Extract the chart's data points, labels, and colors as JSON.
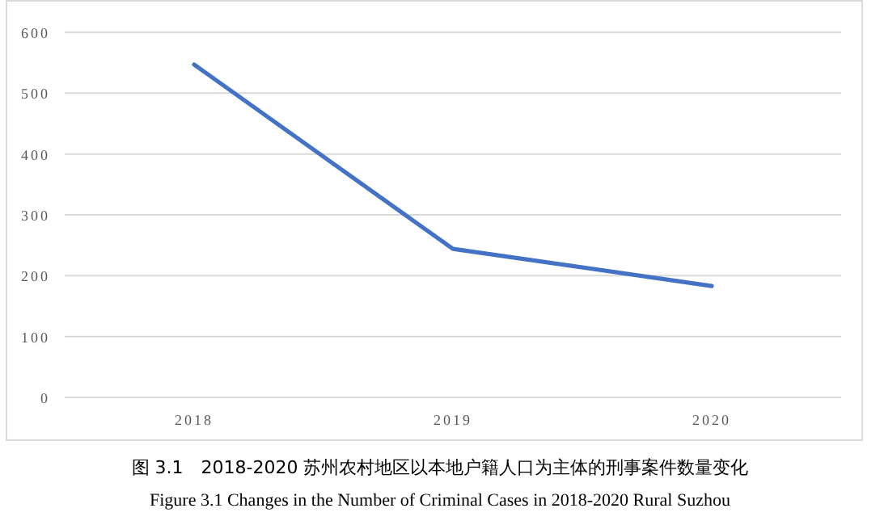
{
  "chart_data": {
    "type": "line",
    "categories": [
      "2018",
      "2019",
      "2020"
    ],
    "series": [
      {
        "color": "#4472c4",
        "values": [
          547,
          244,
          183
        ]
      }
    ],
    "ylim": [
      0,
      600
    ],
    "yticks": [
      0,
      100,
      200,
      300,
      400,
      500,
      600
    ],
    "grid": "y",
    "marker": "none",
    "line_style": "solid",
    "annotations": [
      "图 3.1　2018-2020 苏州农村地区以本地户籍人口为主体的刑事案件数量变化",
      "Figure 3.1 Changes in the Number of Criminal Cases in 2018-2020 Rural Suzhou"
    ]
  }
}
